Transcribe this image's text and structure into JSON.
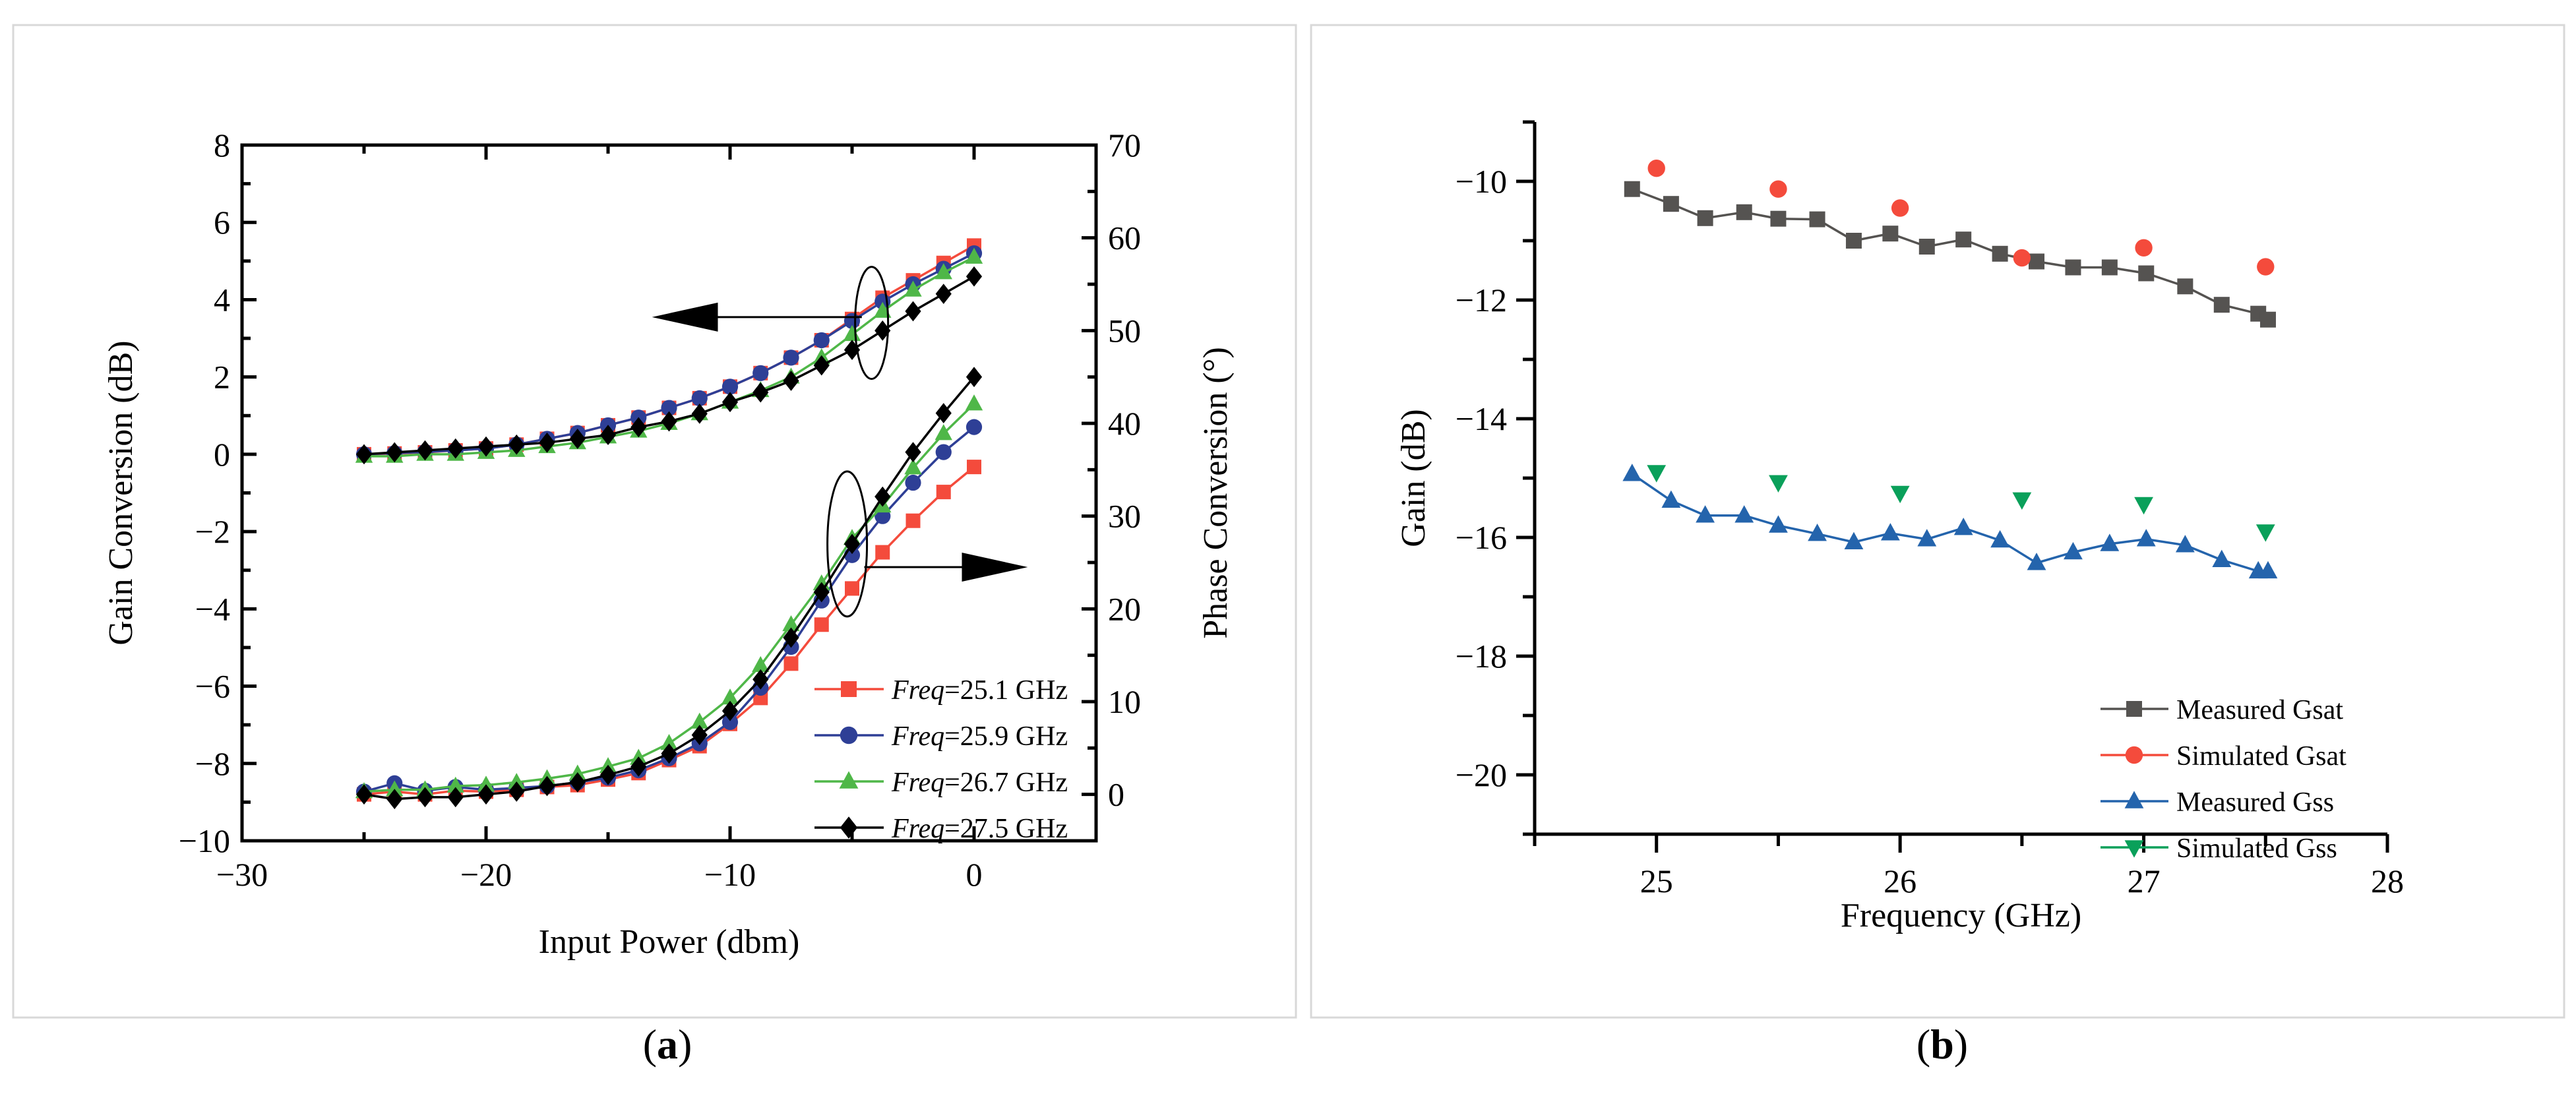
{
  "chart_data": [
    {
      "panel_label": "(a)",
      "type": "line",
      "xlabel": "Input Power (dbm)",
      "ylabel": "Gain Conversion (dB)",
      "y2label": "Phase Conversion (°)",
      "xlim": [
        -30,
        5
      ],
      "ylim": [
        -10,
        8
      ],
      "y2lim": [
        -5,
        70
      ],
      "xticks": [
        -30,
        -20,
        -10,
        0
      ],
      "yticks": [
        -10,
        -8,
        -6,
        -4,
        -2,
        0,
        2,
        4,
        6,
        8
      ],
      "y2ticks": [
        0,
        10,
        20,
        30,
        40,
        50,
        60,
        70
      ],
      "tick_labels": {
        "x": [
          "−30",
          "−20",
          "−10",
          "0"
        ],
        "y": [
          "−10",
          "−8",
          "−6",
          "−4",
          "−2",
          "0",
          "2",
          "4",
          "6",
          "8"
        ],
        "y2": [
          "0",
          "10",
          "20",
          "30",
          "40",
          "50",
          "60",
          "70"
        ]
      },
      "legend_position": "bottom-right",
      "x": [
        -25,
        -23.75,
        -22.5,
        -21.25,
        -20,
        -18.75,
        -17.5,
        -16.25,
        -15,
        -13.75,
        -12.5,
        -11.25,
        -10,
        -8.75,
        -7.5,
        -6.25,
        -5,
        -3.75,
        -2.5,
        -1.25,
        0
      ],
      "series": [
        {
          "name_prefix": "Freq",
          "name_suffix": "=25.1 GHz",
          "color": "#f44b3c",
          "marker": "square",
          "gain": [
            0,
            0.02,
            0.05,
            0.1,
            0.15,
            0.25,
            0.4,
            0.55,
            0.75,
            0.95,
            1.2,
            1.45,
            1.75,
            2.1,
            2.5,
            2.95,
            3.5,
            4.05,
            4.5,
            4.95,
            5.4
          ],
          "phase": [
            0,
            0.3,
            0,
            0.4,
            0.3,
            0.5,
            0.8,
            1.0,
            1.6,
            2.3,
            3.7,
            5.2,
            7.6,
            10.4,
            14.1,
            18.3,
            22.2,
            26.1,
            29.5,
            32.6,
            35.3
          ]
        },
        {
          "name_prefix": "Freq",
          "name_suffix": "=25.9 GHz",
          "color": "#2e3f96",
          "marker": "circle",
          "gain": [
            0,
            0.03,
            0.06,
            0.1,
            0.15,
            0.25,
            0.4,
            0.55,
            0.75,
            0.95,
            1.2,
            1.45,
            1.75,
            2.1,
            2.5,
            2.95,
            3.45,
            3.95,
            4.4,
            4.8,
            5.2
          ],
          "phase": [
            0.3,
            1.2,
            0.4,
            0.8,
            0.5,
            0.7,
            0.9,
            1.3,
            1.8,
            2.6,
            3.9,
            5.5,
            7.8,
            11.5,
            15.9,
            20.9,
            25.8,
            30.0,
            33.6,
            36.9,
            39.6
          ]
        },
        {
          "name_prefix": "Freq",
          "name_suffix": "=26.7 GHz",
          "color": "#4fb748",
          "marker": "triangle-up",
          "gain": [
            -0.05,
            -0.05,
            0,
            0,
            0.05,
            0.1,
            0.2,
            0.3,
            0.45,
            0.6,
            0.8,
            1.05,
            1.35,
            1.65,
            2.0,
            2.5,
            3.1,
            3.7,
            4.25,
            4.7,
            5.1
          ],
          "phase": [
            0.3,
            0.5,
            0.5,
            0.9,
            1.0,
            1.3,
            1.7,
            2.2,
            3.0,
            3.9,
            5.5,
            7.8,
            10.4,
            13.9,
            18.3,
            22.7,
            27.6,
            31.1,
            35.2,
            38.9,
            42.1
          ]
        },
        {
          "name_prefix": "Freq",
          "name_suffix": "=27.5 GHz",
          "color": "#000000",
          "marker": "diamond",
          "gain": [
            0,
            0.05,
            0.1,
            0.15,
            0.2,
            0.25,
            0.3,
            0.4,
            0.5,
            0.7,
            0.85,
            1.05,
            1.35,
            1.6,
            1.9,
            2.3,
            2.7,
            3.2,
            3.7,
            4.15,
            4.6
          ],
          "phase": [
            0,
            -0.5,
            -0.3,
            -0.3,
            0,
            0.3,
            0.9,
            1.3,
            2.1,
            3.0,
            4.4,
            6.4,
            9.0,
            12.4,
            16.9,
            21.8,
            27.0,
            32.1,
            36.9,
            41.1,
            45.0
          ]
        }
      ]
    },
    {
      "panel_label": "(b)",
      "type": "line",
      "xlabel": "Frequency (GHz)",
      "ylabel": "Gain (dB)",
      "xlim": [
        24.5,
        28
      ],
      "ylim": [
        -21,
        -9
      ],
      "xticks": [
        25,
        26,
        27,
        28
      ],
      "yticks": [
        -20,
        -18,
        -16,
        -14,
        -12,
        -10
      ],
      "tick_labels": {
        "x": [
          "25",
          "26",
          "27",
          "28"
        ],
        "y": [
          "−20",
          "−18",
          "−16",
          "−14",
          "−12",
          "−10"
        ]
      },
      "legend_position": "bottom-right",
      "series": [
        {
          "name": "Measured Gsat",
          "color": "#555351",
          "marker": "square",
          "line": true,
          "x": [
            24.9,
            25.06,
            25.2,
            25.36,
            25.5,
            25.66,
            25.81,
            25.96,
            26.11,
            26.26,
            26.41,
            26.56,
            26.71,
            26.86,
            27.01,
            27.17,
            27.32,
            27.47,
            27.51
          ],
          "y": [
            -10.13,
            -10.38,
            -10.62,
            -10.52,
            -10.63,
            -10.64,
            -11.0,
            -10.88,
            -11.1,
            -10.98,
            -11.22,
            -11.35,
            -11.45,
            -11.45,
            -11.55,
            -11.77,
            -12.08,
            -12.23,
            -12.33
          ]
        },
        {
          "name": "Simulated Gsat",
          "color": "#f44b3c",
          "marker": "circle",
          "line": false,
          "x": [
            25,
            25.5,
            26,
            26.5,
            27,
            27.5
          ],
          "y": [
            -9.78,
            -10.13,
            -10.45,
            -11.29,
            -11.12,
            -11.44
          ]
        },
        {
          "name": "Measured Gss",
          "color": "#2464ac",
          "marker": "triangle-up",
          "line": true,
          "x": [
            24.9,
            25.06,
            25.2,
            25.36,
            25.5,
            25.66,
            25.81,
            25.96,
            26.11,
            26.26,
            26.41,
            26.56,
            26.71,
            26.86,
            27.01,
            27.17,
            27.32,
            27.47,
            27.51
          ],
          "y": [
            -14.93,
            -15.38,
            -15.63,
            -15.63,
            -15.8,
            -15.94,
            -16.08,
            -15.93,
            -16.03,
            -15.84,
            -16.05,
            -16.43,
            -16.25,
            -16.11,
            -16.03,
            -16.13,
            -16.38,
            -16.57,
            -16.57
          ]
        },
        {
          "name": "Simulated Gss",
          "color": "#0aa05a",
          "marker": "triangle-down",
          "line": false,
          "x": [
            25,
            25.5,
            26,
            26.5,
            27,
            27.5
          ],
          "y": [
            -14.9,
            -15.07,
            -15.25,
            -15.36,
            -15.44,
            -15.9
          ]
        }
      ]
    }
  ]
}
